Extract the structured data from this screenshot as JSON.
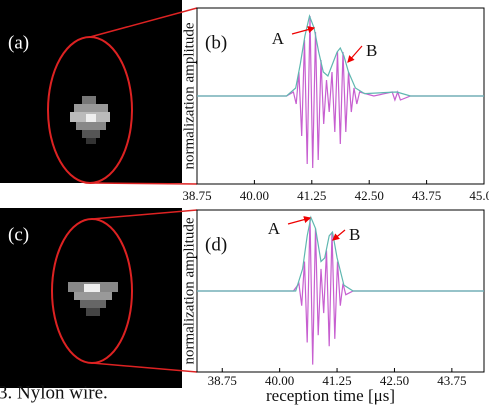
{
  "chart_data": [
    {
      "type": "line",
      "label": "(b)",
      "ylabel": "normalization amplitude",
      "xlim": [
        38.75,
        45.0
      ],
      "ylim": [
        -1.1,
        1.1
      ],
      "xticks": [
        38.75,
        {
          "value": 40,
          "label": "40.00"
        },
        41.25,
        {
          "value": 42.5,
          "label": "42.50"
        },
        43.75,
        {
          "value": 45,
          "label": "45.00"
        }
      ],
      "annotations": [
        {
          "text": "A"
        },
        {
          "text": "B"
        }
      ],
      "series": [
        {
          "color": "#c75fd0",
          "x": [
            38.75,
            40.7,
            40.85,
            40.91,
            40.97,
            41.03,
            41.09,
            41.15,
            41.21,
            41.27,
            41.33,
            41.39,
            41.45,
            41.51,
            41.57,
            41.63,
            41.69,
            41.75,
            41.81,
            41.87,
            41.93,
            41.99,
            42.05,
            42.11,
            42.17,
            42.23,
            42.29,
            42.6,
            43.0,
            43.06,
            43.12,
            43.18,
            43.4,
            45.0
          ],
          "values": [
            0,
            0,
            0.05,
            -0.1,
            0.3,
            -0.5,
            0.7,
            -0.85,
            1.0,
            -0.9,
            0.8,
            -0.8,
            0.45,
            -0.35,
            0.2,
            -0.2,
            0.3,
            -0.45,
            0.55,
            -0.6,
            0.55,
            -0.45,
            0.3,
            -0.2,
            0.1,
            -0.1,
            0.05,
            0,
            0.05,
            -0.05,
            0.05,
            -0.05,
            0,
            0
          ]
        },
        {
          "color": "#5fb7b0",
          "x": [
            38.75,
            40.7,
            40.9,
            41.0,
            41.1,
            41.2,
            41.3,
            41.4,
            41.5,
            41.6,
            41.7,
            41.8,
            41.87,
            41.95,
            42.05,
            42.2,
            42.4,
            43.1,
            43.4,
            45.0
          ],
          "values": [
            0,
            0,
            0.1,
            0.4,
            0.75,
            1.0,
            0.85,
            0.55,
            0.3,
            0.25,
            0.4,
            0.55,
            0.6,
            0.5,
            0.3,
            0.1,
            0.03,
            0.05,
            0,
            0
          ]
        }
      ]
    },
    {
      "type": "line",
      "label": "(d)",
      "ylabel": "normalization amplitude",
      "xlabel": "reception time [μs]",
      "xlim": [
        38.2,
        44.45
      ],
      "ylim": [
        -1.1,
        1.1
      ],
      "xticks": [
        38.75,
        {
          "value": 40,
          "label": "40.00"
        },
        41.25,
        {
          "value": 42.5,
          "label": "42.50"
        },
        43.75
      ],
      "annotations": [
        {
          "text": "A"
        },
        {
          "text": "B"
        }
      ],
      "series": [
        {
          "color": "#c75fd0",
          "x": [
            38.2,
            40.3,
            40.42,
            40.48,
            40.54,
            40.6,
            40.66,
            40.72,
            40.78,
            40.84,
            40.9,
            40.96,
            41.02,
            41.08,
            41.14,
            41.2,
            41.26,
            41.32,
            41.38,
            41.44,
            41.6,
            44.45
          ],
          "values": [
            0,
            0,
            0.1,
            -0.2,
            0.4,
            -0.7,
            1.0,
            -1.0,
            0.85,
            -0.6,
            0.3,
            -0.3,
            0.55,
            -0.75,
            0.8,
            -0.65,
            0.4,
            -0.2,
            0.1,
            -0.05,
            0,
            0
          ]
        },
        {
          "color": "#5fb7b0",
          "x": [
            38.2,
            40.35,
            40.5,
            40.6,
            40.68,
            40.78,
            40.9,
            40.98,
            41.08,
            41.15,
            41.25,
            41.4,
            41.6,
            44.45
          ],
          "values": [
            0,
            0,
            0.3,
            0.75,
            1.0,
            0.85,
            0.4,
            0.45,
            0.75,
            0.8,
            0.45,
            0.08,
            0,
            0
          ]
        }
      ]
    }
  ],
  "images": [
    {
      "label": "(a)"
    },
    {
      "label": "(c)"
    }
  ],
  "caption": "3. Nylon wire."
}
